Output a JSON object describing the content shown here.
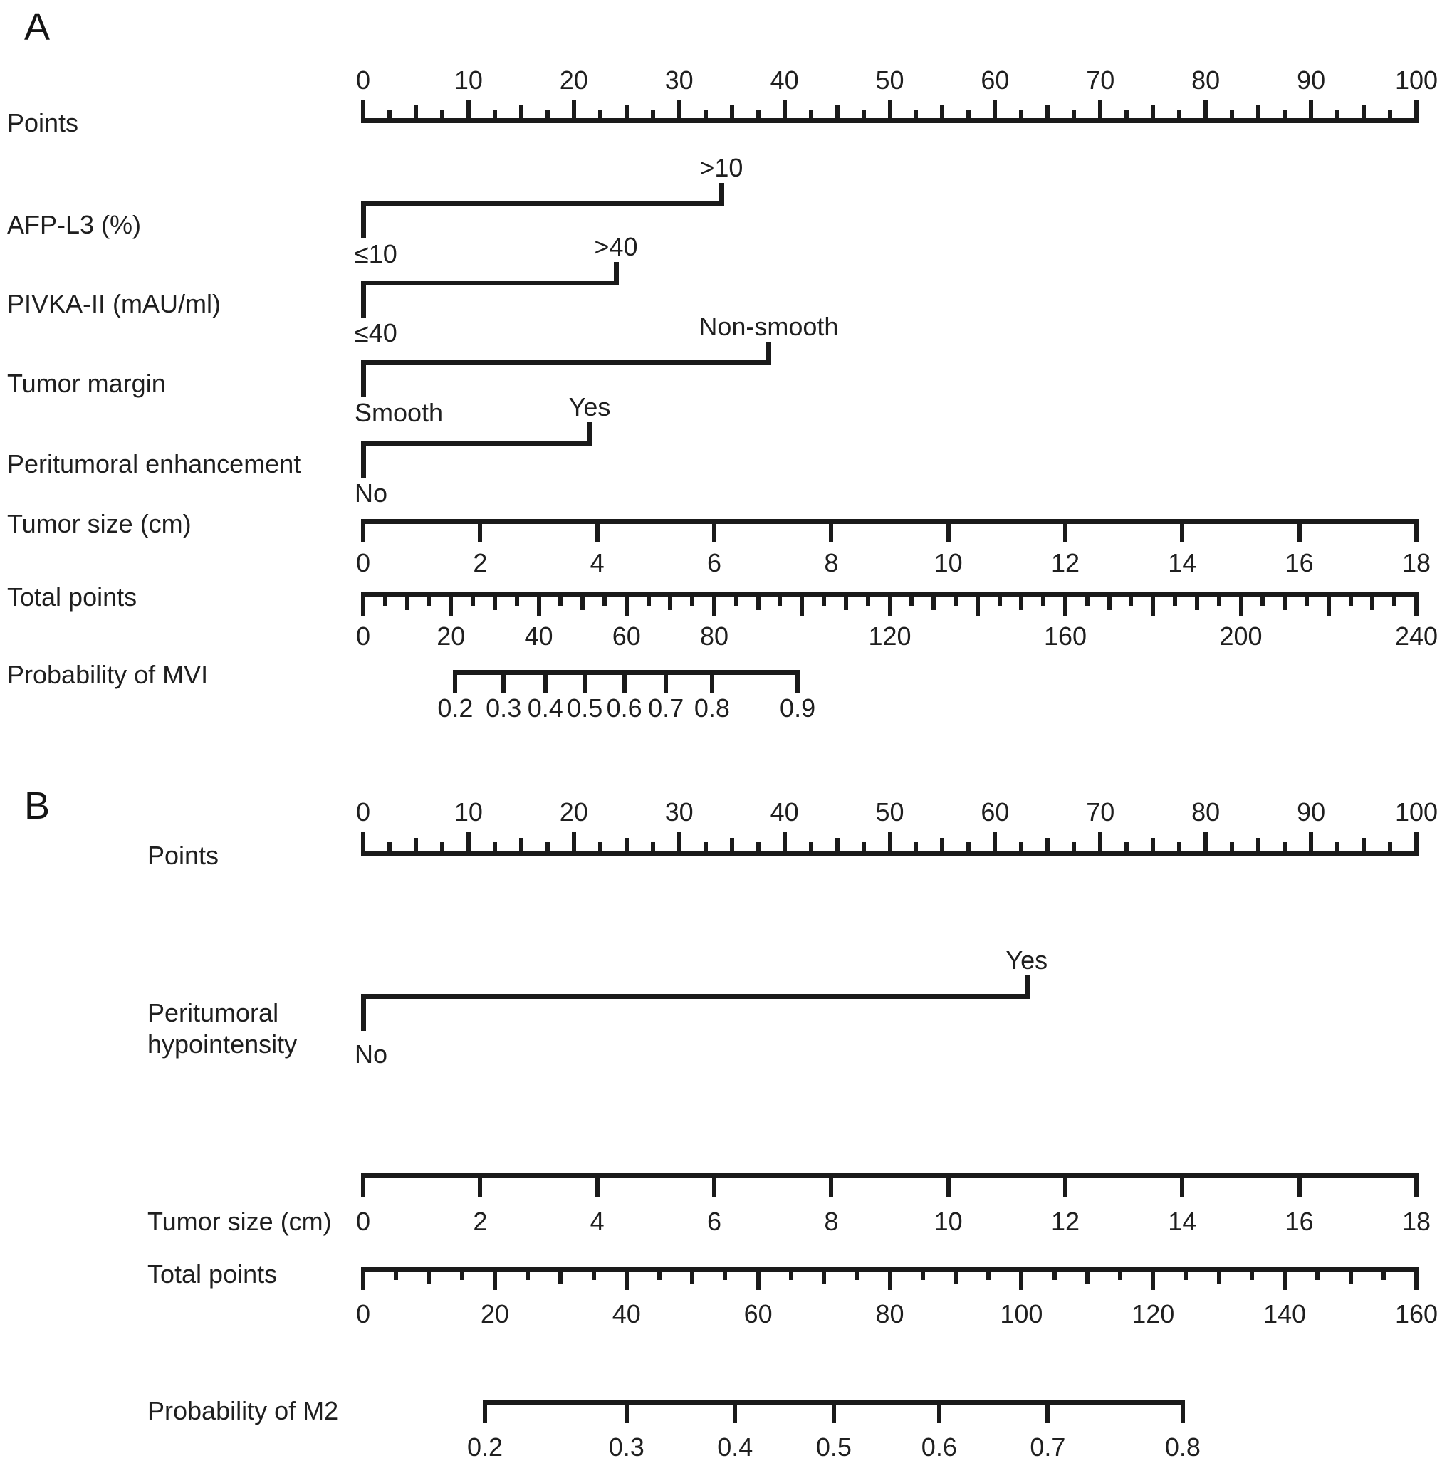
{
  "colors": {
    "ink": "#1a1a1a",
    "background": "#ffffff"
  },
  "chart_data": [
    {
      "type": "nomogram",
      "panel": "A",
      "rows": [
        {
          "kind": "points_axis",
          "name": "points",
          "label": "Points",
          "min": 0,
          "max": 100,
          "minor_step": 2.5,
          "medium_step": 5,
          "major_step": 10,
          "tick_labels": [
            "0",
            "10",
            "20",
            "30",
            "40",
            "50",
            "60",
            "70",
            "80",
            "90",
            "100"
          ],
          "label_values": [
            0,
            10,
            20,
            30,
            40,
            50,
            60,
            70,
            80,
            90,
            100
          ]
        },
        {
          "kind": "binary",
          "name": "afp-l3",
          "label": "AFP-L3 (%)",
          "low": "≤10",
          "high": ">10",
          "high_points": 34
        },
        {
          "kind": "binary",
          "name": "pivka-ii",
          "label": "PIVKA-II (mAU/ml)",
          "low": "≤40",
          "high": ">40",
          "high_points": 24
        },
        {
          "kind": "binary",
          "name": "tumor-margin",
          "label": "Tumor margin",
          "low": "Smooth",
          "high": "Non-smooth",
          "high_points": 38.5
        },
        {
          "kind": "binary",
          "name": "peritumoral-enhancement",
          "label": "Peritumoral enhancement",
          "low": "No",
          "high": "Yes",
          "high_points": 21.5
        },
        {
          "kind": "value_axis",
          "name": "tumor-size",
          "label": "Tumor size (cm)",
          "min": 0,
          "max": 18,
          "tick_labels": [
            "0",
            "2",
            "4",
            "6",
            "8",
            "10",
            "12",
            "14",
            "16",
            "18"
          ],
          "label_values": [
            0,
            2,
            4,
            6,
            8,
            10,
            12,
            14,
            16,
            18
          ]
        },
        {
          "kind": "total_axis",
          "name": "total-points",
          "label": "Total points",
          "min": 0,
          "max": 240,
          "minor_step": 5,
          "medium_step": 10,
          "major_step": 20,
          "tick_labels": [
            "0",
            "20",
            "40",
            "60",
            "80",
            "120",
            "160",
            "200",
            "240"
          ],
          "label_values": [
            0,
            20,
            40,
            60,
            80,
            120,
            160,
            200,
            240
          ]
        },
        {
          "kind": "probability_axis",
          "name": "probability-of-mvi",
          "label": "Probability of MVI",
          "tick_labels": [
            "0.2",
            "0.3",
            "0.4",
            "0.5",
            "0.6",
            "0.7",
            "0.8",
            "0.9"
          ],
          "tick_points": [
            21,
            32,
            41.5,
            50.5,
            59.5,
            69,
            79.5,
            99
          ],
          "total_points_max": 240
        }
      ]
    },
    {
      "type": "nomogram",
      "panel": "B",
      "rows": [
        {
          "kind": "points_axis",
          "name": "points",
          "label": "Points",
          "min": 0,
          "max": 100,
          "minor_step": 2.5,
          "medium_step": 5,
          "major_step": 10,
          "tick_labels": [
            "0",
            "10",
            "20",
            "30",
            "40",
            "50",
            "60",
            "70",
            "80",
            "90",
            "100"
          ],
          "label_values": [
            0,
            10,
            20,
            30,
            40,
            50,
            60,
            70,
            80,
            90,
            100
          ]
        },
        {
          "kind": "binary",
          "name": "peritumoral-hypointensity",
          "label": "Peritumoral hypointensity",
          "label_lines": [
            "Peritumoral",
            "hypointensity"
          ],
          "low": "No",
          "high": "Yes",
          "high_points": 63
        },
        {
          "kind": "value_axis",
          "name": "tumor-size",
          "label": "Tumor size (cm)",
          "min": 0,
          "max": 18,
          "tick_labels": [
            "0",
            "2",
            "4",
            "6",
            "8",
            "10",
            "12",
            "14",
            "16",
            "18"
          ],
          "label_values": [
            0,
            2,
            4,
            6,
            8,
            10,
            12,
            14,
            16,
            18
          ]
        },
        {
          "kind": "total_axis",
          "name": "total-points",
          "label": "Total points",
          "min": 0,
          "max": 160,
          "minor_step": 5,
          "medium_step": 10,
          "major_step": 20,
          "tick_labels": [
            "0",
            "20",
            "40",
            "60",
            "80",
            "100",
            "120",
            "140",
            "160"
          ],
          "label_values": [
            0,
            20,
            40,
            60,
            80,
            100,
            120,
            140,
            160
          ]
        },
        {
          "kind": "probability_axis",
          "name": "probability-of-m2",
          "label": "Probability of M2",
          "tick_labels": [
            "0.2",
            "0.3",
            "0.4",
            "0.5",
            "0.6",
            "0.7",
            "0.8"
          ],
          "tick_points": [
            18.5,
            40,
            56.5,
            71.5,
            87.5,
            104,
            124.5
          ],
          "total_points_max": 160
        }
      ]
    }
  ]
}
